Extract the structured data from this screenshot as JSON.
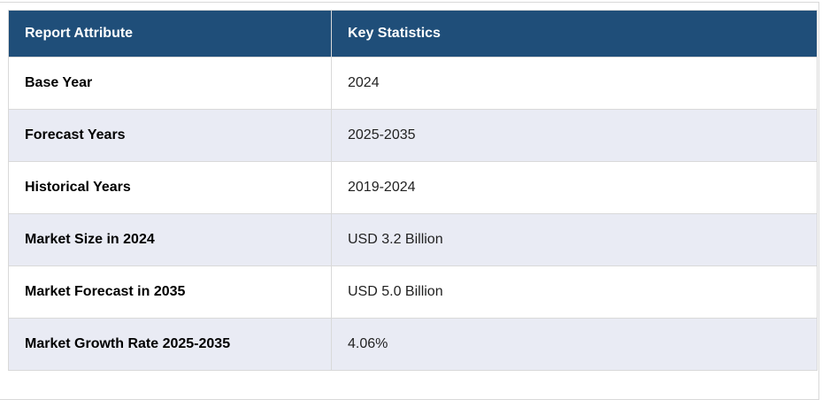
{
  "table": {
    "columns": [
      "Report Attribute",
      "Key Statistics"
    ],
    "rows": [
      {
        "attribute": "Base Year",
        "value": "2024"
      },
      {
        "attribute": "Forecast Years",
        "value": "2025-2035"
      },
      {
        "attribute": "Historical Years",
        "value": "2019-2024"
      },
      {
        "attribute": "Market Size in 2024",
        "value": "USD 3.2 Billion"
      },
      {
        "attribute": "Market Forecast in 2035",
        "value": "USD 5.0 Billion"
      },
      {
        "attribute": "Market Growth Rate 2025-2035",
        "value": "4.06%"
      }
    ]
  },
  "colors": {
    "header_bg": "#1F4E79",
    "header_text": "#FFFFFF",
    "row_bg": "#FFFFFF",
    "row_alt_bg": "#E9EBF4",
    "border": "#D9D9D9",
    "label_text": "#000000",
    "value_text": "#222222"
  }
}
